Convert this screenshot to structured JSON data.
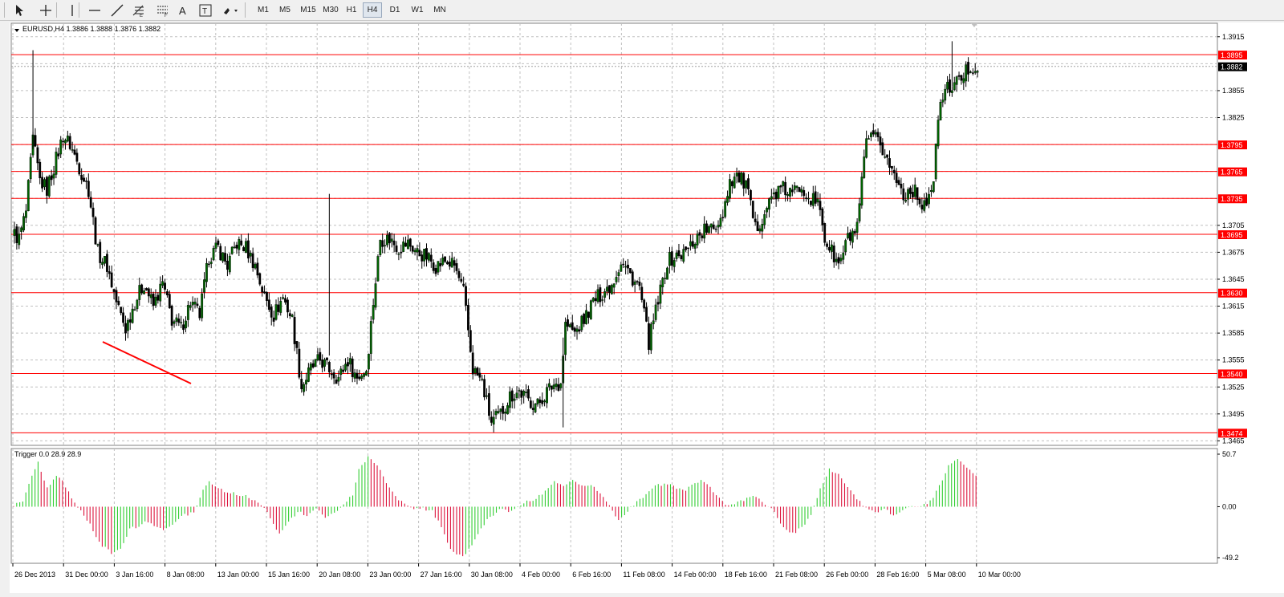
{
  "toolbar": {
    "tools": [
      {
        "name": "cursor-icon"
      },
      {
        "name": "crosshair-icon"
      },
      {
        "name": "vertical-line-icon"
      },
      {
        "name": "horizontal-line-icon"
      },
      {
        "name": "trendline-icon"
      },
      {
        "name": "fibonacci-icon"
      },
      {
        "name": "gann-icon"
      },
      {
        "name": "text-icon",
        "label": "A"
      },
      {
        "name": "text-label-icon",
        "label": "T"
      },
      {
        "name": "arrows-dropdown-icon"
      }
    ],
    "timeframes": [
      "M1",
      "M5",
      "M15",
      "M30",
      "H1",
      "H4",
      "D1",
      "W1",
      "MN"
    ],
    "active_timeframe": "H4"
  },
  "main_chart": {
    "header": "EURUSD,H4  1.3886 1.3888 1.3876 1.3882",
    "price_ticks": [
      "1.3915",
      "1.3855",
      "1.3825",
      "1.3705",
      "1.3675",
      "1.3645",
      "1.3615",
      "1.3585",
      "1.3555",
      "1.3525",
      "1.3495",
      "1.3465"
    ],
    "level_labels": [
      "1.3895",
      "1.3795",
      "1.3765",
      "1.3735",
      "1.3695",
      "1.3630",
      "1.3540",
      "1.3474"
    ],
    "current_price": "1.3882"
  },
  "indicator": {
    "header": "Trigger 0.0 28.9 28.9",
    "ticks": [
      "50.7",
      "0.00",
      "-49.2"
    ]
  },
  "time_axis": [
    "26 Dec 2013",
    "31 Dec 00:00",
    "3 Jan 16:00",
    "8 Jan 08:00",
    "13 Jan 00:00",
    "15 Jan 16:00",
    "20 Jan 08:00",
    "23 Jan 00:00",
    "27 Jan 16:00",
    "30 Jan 08:00",
    "4 Feb 00:00",
    "6 Feb 16:00",
    "11 Feb 08:00",
    "14 Feb 00:00",
    "18 Feb 16:00",
    "21 Feb 08:00",
    "26 Feb 00:00",
    "28 Feb 16:00",
    "5 Mar 08:00",
    "10 Mar 00:00"
  ],
  "colors": {
    "bull": "#006400",
    "bear": "#000000",
    "level": "#ff0000",
    "grid": "#c0c0c0",
    "osc_pos": "#32cd32",
    "osc_neg": "#dc143c"
  },
  "chart_data": {
    "type": "candlestick",
    "symbol": "EURUSD",
    "timeframe": "H4",
    "ylim": [
      1.346,
      1.393
    ],
    "horizontal_levels": [
      1.3895,
      1.3795,
      1.3765,
      1.3735,
      1.3695,
      1.363,
      1.354,
      1.3474
    ],
    "trendline": [
      {
        "time": "30 Dec 2013",
        "price": 1.3572
      },
      {
        "time": "8 Jan 2014",
        "price": 1.3526
      }
    ],
    "anchors": [
      [
        0,
        1.3695
      ],
      [
        2,
        1.369
      ],
      [
        5,
        1.372
      ],
      [
        8,
        1.38
      ],
      [
        11,
        1.3755
      ],
      [
        14,
        1.3745
      ],
      [
        17,
        1.377
      ],
      [
        21,
        1.3805
      ],
      [
        24,
        1.3795
      ],
      [
        28,
        1.377
      ],
      [
        32,
        1.3745
      ],
      [
        36,
        1.3675
      ],
      [
        40,
        1.366
      ],
      [
        44,
        1.362
      ],
      [
        48,
        1.359
      ],
      [
        52,
        1.362
      ],
      [
        56,
        1.364
      ],
      [
        60,
        1.3615
      ],
      [
        64,
        1.364
      ],
      [
        68,
        1.36
      ],
      [
        72,
        1.359
      ],
      [
        76,
        1.362
      ],
      [
        80,
        1.3605
      ],
      [
        84,
        1.367
      ],
      [
        88,
        1.368
      ],
      [
        92,
        1.366
      ],
      [
        96,
        1.3685
      ],
      [
        100,
        1.368
      ],
      [
        104,
        1.366
      ],
      [
        108,
        1.3625
      ],
      [
        112,
        1.3605
      ],
      [
        116,
        1.3625
      ],
      [
        120,
        1.36
      ],
      [
        124,
        1.3525
      ],
      [
        128,
        1.3545
      ],
      [
        132,
        1.3555
      ],
      [
        136,
        1.3545
      ],
      [
        140,
        1.3535
      ],
      [
        144,
        1.3555
      ],
      [
        148,
        1.3535
      ],
      [
        152,
        1.3545
      ],
      [
        155,
        1.362
      ],
      [
        158,
        1.369
      ],
      [
        162,
        1.369
      ],
      [
        166,
        1.368
      ],
      [
        170,
        1.3685
      ],
      [
        174,
        1.3675
      ],
      [
        178,
        1.367
      ],
      [
        182,
        1.366
      ],
      [
        186,
        1.3665
      ],
      [
        190,
        1.366
      ],
      [
        194,
        1.363
      ],
      [
        198,
        1.3545
      ],
      [
        202,
        1.353
      ],
      [
        206,
        1.3485
      ],
      [
        210,
        1.3495
      ],
      [
        214,
        1.3515
      ],
      [
        218,
        1.352
      ],
      [
        222,
        1.351
      ],
      [
        226,
        1.3505
      ],
      [
        230,
        1.352
      ],
      [
        233,
        1.3528
      ],
      [
        236,
        1.353
      ],
      [
        238,
        1.3595
      ],
      [
        242,
        1.3585
      ],
      [
        246,
        1.36
      ],
      [
        250,
        1.362
      ],
      [
        254,
        1.363
      ],
      [
        258,
        1.364
      ],
      [
        262,
        1.3665
      ],
      [
        266,
        1.365
      ],
      [
        270,
        1.3635
      ],
      [
        274,
        1.3575
      ],
      [
        278,
        1.362
      ],
      [
        282,
        1.3665
      ],
      [
        286,
        1.367
      ],
      [
        290,
        1.3675
      ],
      [
        294,
        1.369
      ],
      [
        298,
        1.37
      ],
      [
        302,
        1.37
      ],
      [
        306,
        1.372
      ],
      [
        309,
        1.3755
      ],
      [
        312,
        1.376
      ],
      [
        316,
        1.375
      ],
      [
        320,
        1.37
      ],
      [
        324,
        1.372
      ],
      [
        328,
        1.374
      ],
      [
        332,
        1.3745
      ],
      [
        336,
        1.374
      ],
      [
        340,
        1.375
      ],
      [
        344,
        1.3735
      ],
      [
        348,
        1.3725
      ],
      [
        350,
        1.369
      ],
      [
        352,
        1.368
      ],
      [
        356,
        1.366
      ],
      [
        360,
        1.369
      ],
      [
        364,
        1.37
      ],
      [
        368,
        1.38
      ],
      [
        372,
        1.38
      ],
      [
        376,
        1.3785
      ],
      [
        380,
        1.376
      ],
      [
        384,
        1.374
      ],
      [
        388,
        1.3745
      ],
      [
        392,
        1.373
      ],
      [
        396,
        1.3735
      ],
      [
        400,
        1.3845
      ],
      [
        404,
        1.386
      ],
      [
        408,
        1.3865
      ],
      [
        412,
        1.388
      ],
      [
        416,
        1.3882
      ]
    ],
    "oscillator": {
      "name": "Trigger",
      "ylim": [
        -49.2,
        50.7
      ],
      "anchors": [
        [
          0,
          2
        ],
        [
          3,
          5
        ],
        [
          6,
          30
        ],
        [
          8,
          42
        ],
        [
          11,
          18
        ],
        [
          14,
          30
        ],
        [
          16,
          24
        ],
        [
          19,
          8
        ],
        [
          21,
          0
        ],
        [
          24,
          -12
        ],
        [
          28,
          -35
        ],
        [
          32,
          -45
        ],
        [
          35,
          -42
        ],
        [
          38,
          -22
        ],
        [
          41,
          -18
        ],
        [
          44,
          -14
        ],
        [
          47,
          -20
        ],
        [
          50,
          -22
        ],
        [
          53,
          -15
        ],
        [
          56,
          -8
        ],
        [
          59,
          -6
        ],
        [
          62,
          15
        ],
        [
          64,
          25
        ],
        [
          67,
          18
        ],
        [
          70,
          14
        ],
        [
          73,
          12
        ],
        [
          76,
          10
        ],
        [
          79,
          6
        ],
        [
          82,
          0
        ],
        [
          85,
          -18
        ],
        [
          87,
          -25
        ],
        [
          90,
          -15
        ],
        [
          93,
          -5
        ],
        [
          96,
          -8
        ],
        [
          99,
          -2
        ],
        [
          102,
          -10
        ],
        [
          105,
          -5
        ],
        [
          108,
          2
        ],
        [
          111,
          12
        ],
        [
          113,
          35
        ],
        [
          116,
          48
        ],
        [
          119,
          40
        ],
        [
          122,
          22
        ],
        [
          125,
          10
        ],
        [
          128,
          2
        ],
        [
          131,
          -3
        ],
        [
          134,
          -2
        ],
        [
          137,
          -4
        ],
        [
          140,
          -20
        ],
        [
          143,
          -42
        ],
        [
          147,
          -48
        ],
        [
          150,
          -38
        ],
        [
          153,
          -20
        ],
        [
          156,
          -10
        ],
        [
          159,
          -2
        ],
        [
          162,
          -4
        ],
        [
          165,
          0
        ],
        [
          168,
          5
        ],
        [
          171,
          8
        ],
        [
          174,
          15
        ],
        [
          177,
          25
        ],
        [
          180,
          20
        ],
        [
          183,
          25
        ],
        [
          186,
          22
        ],
        [
          189,
          20
        ],
        [
          192,
          14
        ],
        [
          195,
          0
        ],
        [
          198,
          -12
        ],
        [
          201,
          -4
        ],
        [
          204,
          5
        ],
        [
          207,
          12
        ],
        [
          210,
          20
        ],
        [
          213,
          22
        ],
        [
          216,
          20
        ],
        [
          219,
          15
        ],
        [
          222,
          20
        ],
        [
          225,
          25
        ],
        [
          228,
          18
        ],
        [
          231,
          8
        ],
        [
          234,
          0
        ],
        [
          237,
          5
        ],
        [
          240,
          8
        ],
        [
          243,
          10
        ],
        [
          246,
          2
        ],
        [
          249,
          -5
        ],
        [
          252,
          -20
        ],
        [
          255,
          -26
        ],
        [
          258,
          -20
        ],
        [
          261,
          -8
        ],
        [
          264,
          18
        ],
        [
          267,
          36
        ],
        [
          270,
          32
        ],
        [
          273,
          20
        ],
        [
          276,
          8
        ],
        [
          279,
          -2
        ],
        [
          282,
          -6
        ],
        [
          285,
          -2
        ],
        [
          288,
          -8
        ],
        [
          291,
          -4
        ],
        [
          294,
          0
        ],
        [
          297,
          2
        ],
        [
          300,
          5
        ],
        [
          303,
          20
        ],
        [
          306,
          40
        ],
        [
          309,
          45
        ],
        [
          312,
          38
        ],
        [
          315,
          30
        ]
      ]
    }
  }
}
